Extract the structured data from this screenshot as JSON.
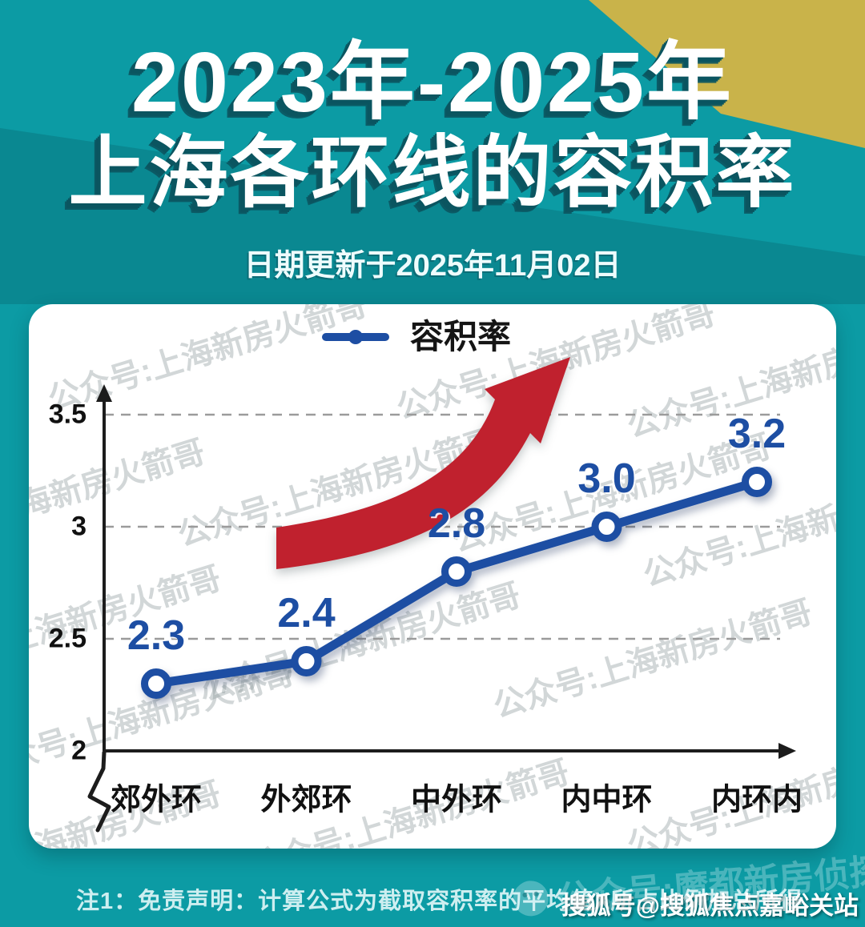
{
  "header": {
    "title_line1": "2023年-2025年",
    "title_line2": "上海各环线的容积率",
    "date_note": "日期更新于2025年11月02日"
  },
  "chart_data": {
    "type": "line",
    "title": "2023年-2025年上海各环线的容积率",
    "categories": [
      "郊外环",
      "外郊环",
      "中外环",
      "内中环",
      "内环内"
    ],
    "series": [
      {
        "name": "容积率",
        "values": [
          2.3,
          2.4,
          2.8,
          3.0,
          3.2
        ]
      }
    ],
    "y_ticks": [
      2,
      2.5,
      3,
      3.5
    ],
    "ylim": [
      2,
      3.7
    ],
    "xlabel": "",
    "ylabel": "",
    "grid": "horizontal-dashed",
    "legend_position": "top-center",
    "annotation": "red upward trend arrow"
  },
  "watermarks": {
    "diagonal_text": "公众号:上海新房火箭哥",
    "bottom_text": "公众号:魔都新房侦探"
  },
  "footer": {
    "note": "注1：免责声明：计算公式为截取容积率的平均值X所占比例加总所得",
    "credit": "搜狐号@搜狐焦点嘉峪关站"
  },
  "colors": {
    "background_teal": "#0c9ba4",
    "accent_mustard": "#c9b34a",
    "line_blue": "#1d4ea3",
    "arrow_red": "#c0212e",
    "card_white": "#ffffff",
    "grid_gray": "#9b9b9b"
  }
}
